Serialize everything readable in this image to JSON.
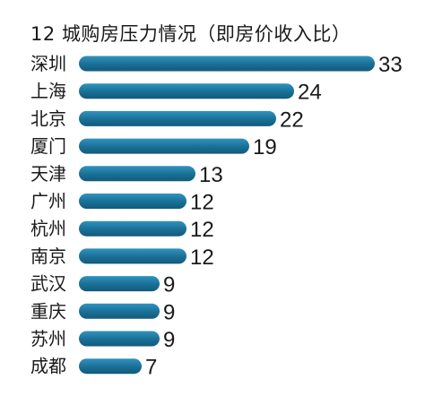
{
  "chart_data": {
    "type": "bar",
    "orientation": "horizontal",
    "title": "12 城购房压力情况（即房价收入比）",
    "categories": [
      "深圳",
      "上海",
      "北京",
      "厦门",
      "天津",
      "广州",
      "杭州",
      "南京",
      "武汉",
      "重庆",
      "苏州",
      "成都"
    ],
    "values": [
      33,
      24,
      22,
      19,
      13,
      12,
      12,
      12,
      9,
      9,
      9,
      7
    ],
    "data_labels": [
      "33",
      "24",
      "22",
      "19",
      "13",
      "12",
      "12",
      "12",
      "9",
      "9",
      "9",
      "7"
    ],
    "xlabel": "",
    "ylabel": "",
    "grid": false,
    "legend": "none",
    "bar_color": "#1a6f95",
    "bar_highlight": "#2a8fba"
  }
}
